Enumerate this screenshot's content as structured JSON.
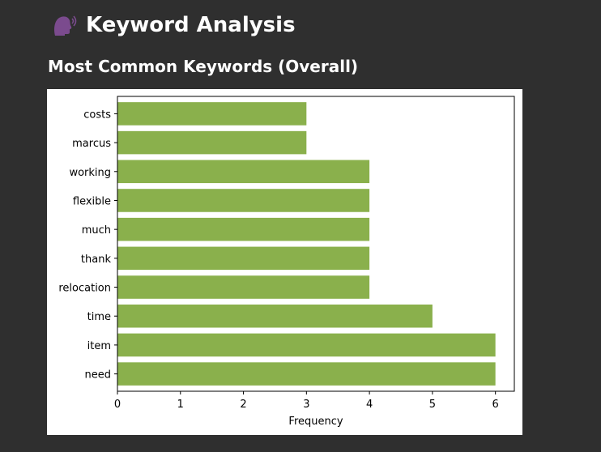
{
  "header": {
    "title": "Keyword Analysis",
    "title_icon": "speaking-head-icon"
  },
  "section": {
    "title": "Most Common Keywords (Overall)"
  },
  "chart_data": {
    "type": "bar",
    "orientation": "horizontal",
    "categories": [
      "costs",
      "marcus",
      "working",
      "flexible",
      "much",
      "thank",
      "relocation",
      "time",
      "item",
      "need"
    ],
    "values": [
      3,
      3,
      4,
      4,
      4,
      4,
      4,
      5,
      6,
      6
    ],
    "xlabel": "Frequency",
    "ylabel": "",
    "xlim": [
      0,
      6.3
    ],
    "xticks": [
      0,
      1,
      2,
      3,
      4,
      5,
      6
    ],
    "bar_color": "#8ab04c",
    "grid": false
  },
  "colors": {
    "background": "#2f2f2f",
    "text": "#ffffff",
    "icon": "#7b4b8e"
  }
}
